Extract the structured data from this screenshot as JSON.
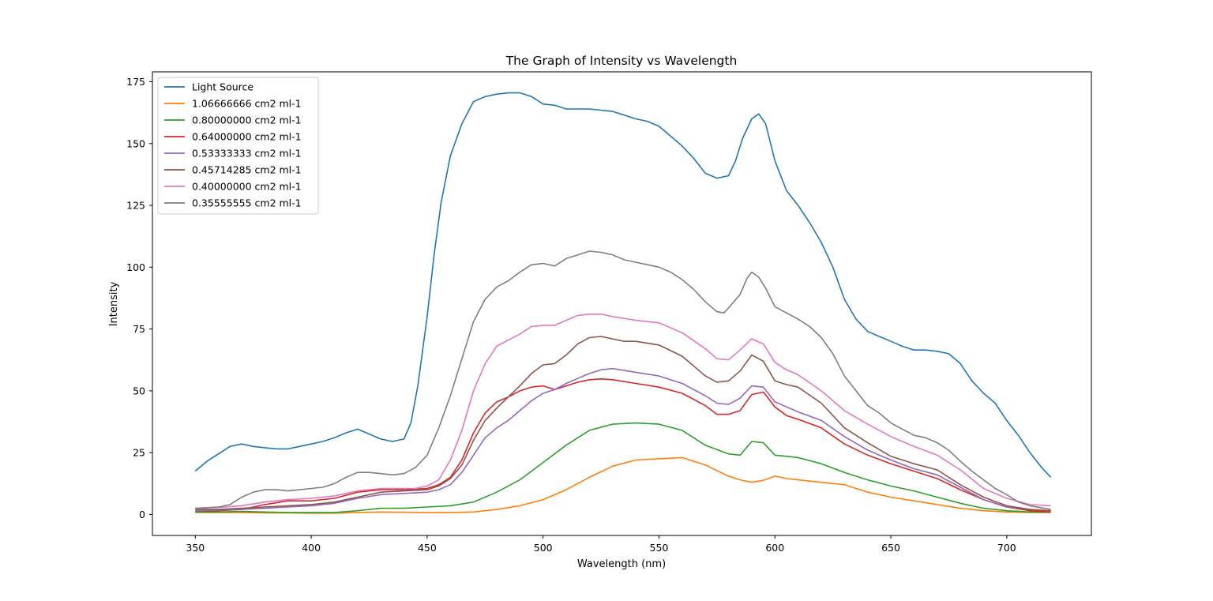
{
  "chart_data": {
    "type": "line",
    "title": "The Graph of Intensity vs Wavelength",
    "xlabel": "Wavelength (nm)",
    "ylabel": "Intensity",
    "xlim": [
      331.5,
      736.5
    ],
    "ylim": [
      -8.5,
      179
    ],
    "xticks": [
      350,
      400,
      450,
      500,
      550,
      600,
      650,
      700
    ],
    "yticks": [
      0,
      25,
      50,
      75,
      100,
      125,
      150,
      175
    ],
    "legend_position": "upper-left",
    "grid": false,
    "series": [
      {
        "name": "Light Source",
        "color": "#1f77b4",
        "x": [
          350,
          355,
          360,
          365,
          370,
          375,
          380,
          385,
          390,
          395,
          400,
          405,
          410,
          415,
          420,
          425,
          430,
          435,
          440,
          443,
          446,
          450,
          453,
          456,
          460,
          465,
          470,
          475,
          480,
          485,
          490,
          495,
          500,
          505,
          510,
          515,
          520,
          525,
          530,
          535,
          540,
          545,
          550,
          555,
          560,
          565,
          570,
          575,
          580,
          583,
          586,
          590,
          593,
          596,
          600,
          605,
          610,
          615,
          620,
          625,
          630,
          635,
          640,
          645,
          650,
          655,
          660,
          665,
          670,
          675,
          680,
          685,
          690,
          695,
          700,
          705,
          710,
          715,
          719
        ],
        "y": [
          17.5,
          21.5,
          24.5,
          27.5,
          28.5,
          27.5,
          27,
          26.5,
          26.5,
          27.5,
          28.5,
          29.5,
          31,
          33,
          34.5,
          32.5,
          30.5,
          29.5,
          30.5,
          37,
          52,
          80,
          105,
          126,
          145,
          158,
          167,
          169,
          170,
          170.5,
          170.5,
          169,
          166,
          165.5,
          164,
          164,
          164,
          163.5,
          163,
          161.5,
          160,
          159,
          157,
          153,
          149,
          144,
          138,
          136,
          137,
          143,
          152,
          160,
          162,
          158,
          143,
          131,
          125,
          118,
          110,
          100,
          87,
          79,
          74,
          72,
          70,
          68,
          66.5,
          66.5,
          66,
          65,
          61,
          54,
          49,
          45,
          38,
          32,
          25,
          19,
          15
        ]
      },
      {
        "name": "1.06666666 cm2 ml-1",
        "color": "#ff7f0e",
        "x": [
          350,
          360,
          370,
          380,
          390,
          400,
          410,
          420,
          430,
          440,
          450,
          460,
          470,
          480,
          490,
          500,
          510,
          520,
          530,
          540,
          550,
          560,
          570,
          580,
          585,
          590,
          595,
          600,
          605,
          610,
          620,
          630,
          640,
          650,
          660,
          670,
          680,
          690,
          700,
          710,
          719
        ],
        "y": [
          0.8,
          0.8,
          0.8,
          0.6,
          0.6,
          0.5,
          0.5,
          0.8,
          1.0,
          0.9,
          0.8,
          0.8,
          1.0,
          2.0,
          3.5,
          6.0,
          10.0,
          15.0,
          19.5,
          22.0,
          22.5,
          23.0,
          20.0,
          15.5,
          14.0,
          13.0,
          13.8,
          15.5,
          14.5,
          14.0,
          13.0,
          12.0,
          9.0,
          7.0,
          5.5,
          4.0,
          2.5,
          1.5,
          1.0,
          0.8,
          0.8
        ]
      },
      {
        "name": "0.80000000 cm2 ml-1",
        "color": "#2ca02c",
        "x": [
          350,
          360,
          370,
          380,
          390,
          400,
          410,
          420,
          430,
          440,
          450,
          460,
          470,
          480,
          490,
          500,
          510,
          520,
          530,
          540,
          550,
          560,
          570,
          580,
          585,
          590,
          595,
          600,
          605,
          610,
          620,
          630,
          640,
          650,
          660,
          670,
          680,
          690,
          700,
          710,
          719
        ],
        "y": [
          1.0,
          1.0,
          1.2,
          1.0,
          0.8,
          0.8,
          0.8,
          1.5,
          2.5,
          2.5,
          3.0,
          3.5,
          5.0,
          9.0,
          14.0,
          21.0,
          28.0,
          34.0,
          36.5,
          37.0,
          36.5,
          34.0,
          28.0,
          24.5,
          24.0,
          29.5,
          29.0,
          24.0,
          23.5,
          23.0,
          20.5,
          17.0,
          14.0,
          11.5,
          9.5,
          7.0,
          4.5,
          2.5,
          1.5,
          1.0,
          1.0
        ]
      },
      {
        "name": "0.64000000 cm2 ml-1",
        "color": "#d62728",
        "x": [
          350,
          360,
          370,
          380,
          390,
          400,
          410,
          420,
          430,
          440,
          450,
          455,
          460,
          465,
          470,
          475,
          480,
          485,
          490,
          495,
          500,
          505,
          510,
          515,
          520,
          525,
          530,
          540,
          550,
          560,
          570,
          575,
          580,
          585,
          590,
          595,
          600,
          605,
          610,
          620,
          630,
          640,
          650,
          660,
          670,
          680,
          690,
          700,
          710,
          719
        ],
        "y": [
          1.5,
          1.5,
          2.0,
          4.0,
          5.5,
          5.5,
          6.5,
          9.0,
          10.0,
          10.0,
          10.5,
          12.0,
          15.0,
          22.0,
          33.0,
          41.0,
          45.5,
          47.5,
          50.0,
          51.5,
          52.0,
          50.5,
          52.0,
          53.5,
          54.5,
          54.8,
          54.5,
          53.0,
          51.5,
          49.0,
          44.0,
          40.5,
          40.5,
          42.0,
          48.5,
          49.5,
          43.5,
          40.0,
          38.5,
          35.0,
          28.5,
          24.0,
          20.5,
          17.5,
          14.5,
          10.0,
          6.0,
          3.0,
          1.5,
          1.0
        ]
      },
      {
        "name": "0.53333333 cm2 ml-1",
        "color": "#9467bd",
        "x": [
          350,
          360,
          370,
          380,
          390,
          400,
          410,
          420,
          430,
          440,
          450,
          455,
          460,
          465,
          470,
          475,
          480,
          485,
          490,
          495,
          500,
          505,
          510,
          515,
          520,
          525,
          530,
          540,
          550,
          560,
          570,
          575,
          580,
          585,
          590,
          595,
          600,
          605,
          610,
          620,
          630,
          640,
          650,
          660,
          670,
          680,
          690,
          700,
          710,
          719
        ],
        "y": [
          1.5,
          1.8,
          2.0,
          2.5,
          3.0,
          3.5,
          4.5,
          6.5,
          8.0,
          8.5,
          9.0,
          10.0,
          12.0,
          17.0,
          24.0,
          31.0,
          35.0,
          38.0,
          42.0,
          46.0,
          49.0,
          50.5,
          53.0,
          55.0,
          57.0,
          58.5,
          59.0,
          57.5,
          56.0,
          53.0,
          48.0,
          45.0,
          44.5,
          47.0,
          52.0,
          51.5,
          45.5,
          43.5,
          41.5,
          38.0,
          31.5,
          26.0,
          22.0,
          18.5,
          16.0,
          11.0,
          6.0,
          3.0,
          2.0,
          1.5
        ]
      },
      {
        "name": "0.45714285 cm2 ml-1",
        "color": "#8c564b",
        "x": [
          350,
          360,
          370,
          380,
          390,
          400,
          410,
          420,
          430,
          440,
          450,
          455,
          460,
          465,
          470,
          475,
          480,
          485,
          490,
          495,
          500,
          505,
          510,
          515,
          520,
          525,
          530,
          535,
          540,
          550,
          560,
          570,
          575,
          580,
          585,
          590,
          595,
          600,
          605,
          610,
          620,
          630,
          640,
          650,
          660,
          670,
          680,
          690,
          700,
          710,
          719
        ],
        "y": [
          2.0,
          2.0,
          2.5,
          3.0,
          3.5,
          4.0,
          5.0,
          7.0,
          9.0,
          9.5,
          10.0,
          11.5,
          14.5,
          20.0,
          30.0,
          38.0,
          43.0,
          47.5,
          52.0,
          57.0,
          60.5,
          61.0,
          64.5,
          69.0,
          71.5,
          72.0,
          71.0,
          70.0,
          70.0,
          68.5,
          64.0,
          56.0,
          53.5,
          54.0,
          58.0,
          64.5,
          62.0,
          54.0,
          52.5,
          51.5,
          45.0,
          35.0,
          29.0,
          23.5,
          20.5,
          18.0,
          12.0,
          7.0,
          3.5,
          2.0,
          1.5
        ]
      },
      {
        "name": "0.40000000 cm2 ml-1",
        "color": "#e377c2",
        "x": [
          350,
          360,
          370,
          380,
          390,
          400,
          410,
          420,
          430,
          440,
          445,
          450,
          455,
          460,
          465,
          470,
          475,
          480,
          485,
          490,
          495,
          500,
          505,
          510,
          515,
          520,
          525,
          530,
          540,
          550,
          560,
          570,
          575,
          580,
          585,
          590,
          595,
          600,
          605,
          610,
          620,
          630,
          640,
          650,
          660,
          670,
          680,
          690,
          700,
          710,
          719
        ],
        "y": [
          2.5,
          2.8,
          3.5,
          5.0,
          6.0,
          6.5,
          7.5,
          9.5,
          10.5,
          10.5,
          10.5,
          11.5,
          14.0,
          22.0,
          34.0,
          50.0,
          61.0,
          68.0,
          70.5,
          73.0,
          76.0,
          76.5,
          76.5,
          78.5,
          80.5,
          81.0,
          81.0,
          80.0,
          78.5,
          77.5,
          73.5,
          67.0,
          63.0,
          62.5,
          66.5,
          71.0,
          69.0,
          61.5,
          58.5,
          56.5,
          50.0,
          42.0,
          36.5,
          31.5,
          27.5,
          24.0,
          18.0,
          10.5,
          6.5,
          4.0,
          3.5
        ]
      },
      {
        "name": "0.35555555 cm2 ml-1",
        "color": "#7f7f7f",
        "x": [
          350,
          360,
          365,
          370,
          375,
          380,
          385,
          390,
          395,
          400,
          405,
          410,
          415,
          420,
          425,
          430,
          435,
          440,
          445,
          450,
          455,
          460,
          465,
          470,
          475,
          480,
          485,
          490,
          495,
          500,
          505,
          510,
          515,
          520,
          525,
          530,
          535,
          540,
          545,
          550,
          555,
          560,
          565,
          570,
          575,
          578,
          580,
          585,
          588,
          590,
          593,
          596,
          600,
          605,
          610,
          615,
          620,
          625,
          630,
          635,
          640,
          645,
          650,
          655,
          660,
          665,
          670,
          675,
          680,
          685,
          690,
          695,
          700,
          705,
          710,
          719
        ],
        "y": [
          2.5,
          3.0,
          4.0,
          7.0,
          9.0,
          10.0,
          10.0,
          9.5,
          10.0,
          10.5,
          11.0,
          12.5,
          15.0,
          17.0,
          17.0,
          16.5,
          16.0,
          16.5,
          19.0,
          24.0,
          35.0,
          48.0,
          63.0,
          78.0,
          87.0,
          92.0,
          94.5,
          98.0,
          101.0,
          101.5,
          100.5,
          103.5,
          105.0,
          106.5,
          106.0,
          105.0,
          103.0,
          102.0,
          101.0,
          100.0,
          98.0,
          95.0,
          91.0,
          86.0,
          82.0,
          81.5,
          83.5,
          89.0,
          95.5,
          98.0,
          96.0,
          91.5,
          84.0,
          81.5,
          79.0,
          76.0,
          71.5,
          65.0,
          56.0,
          50.0,
          44.0,
          41.0,
          37.0,
          34.5,
          32.0,
          31.0,
          29.0,
          26.0,
          21.5,
          17.5,
          14.0,
          10.5,
          8.0,
          5.0,
          3.5,
          2.0
        ]
      }
    ]
  }
}
